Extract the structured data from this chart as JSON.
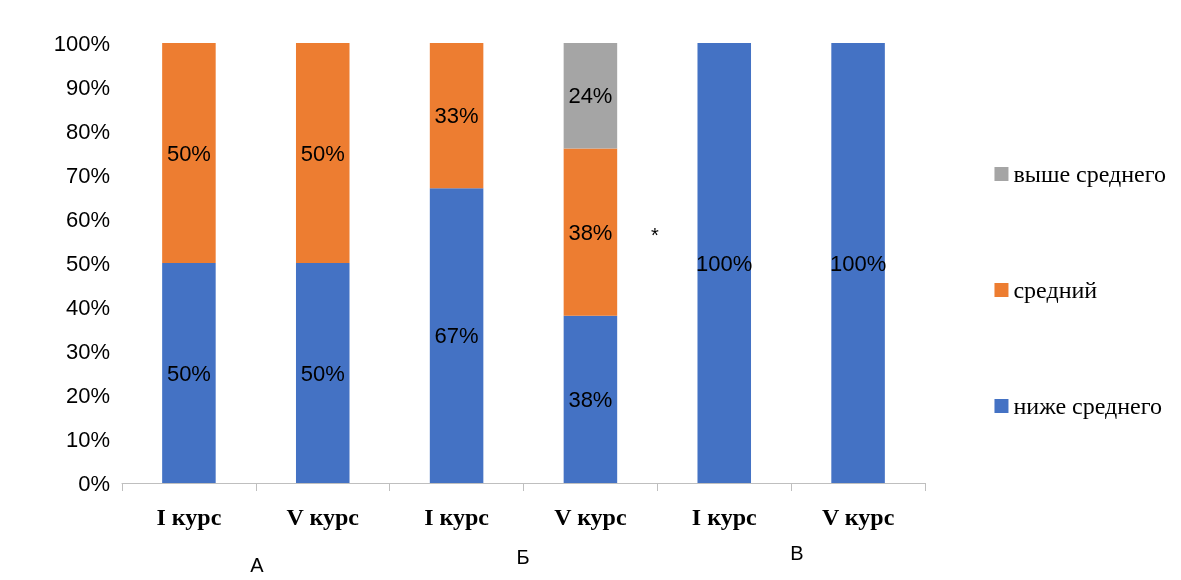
{
  "chart_data": {
    "type": "bar",
    "stacked": true,
    "categories": [
      "I курс",
      "V курс",
      "I курс",
      "V курс",
      "I курс",
      "V курс"
    ],
    "series": [
      {
        "name": "ниже среднего",
        "color": "#4472c4",
        "values": [
          50,
          50,
          67,
          38,
          100,
          100
        ],
        "value_labels": [
          "50%",
          "50%",
          "67%",
          "38%",
          "100%",
          "100%"
        ]
      },
      {
        "name": "средний",
        "color": "#ed7d31",
        "values": [
          50,
          50,
          33,
          38,
          null,
          null
        ],
        "value_labels": [
          "50%",
          "50%",
          "33%",
          "38%",
          null,
          null
        ]
      },
      {
        "name": "выше среднего",
        "color": "#a5a5a5",
        "values": [
          null,
          null,
          null,
          24,
          null,
          null
        ],
        "value_labels": [
          null,
          null,
          null,
          "24%",
          null,
          null
        ]
      }
    ],
    "ylim": [
      0,
      100
    ],
    "yticks": [
      {
        "value": 0,
        "label": "0%"
      },
      {
        "value": 10,
        "label": "10%"
      },
      {
        "value": 20,
        "label": "20%"
      },
      {
        "value": 30,
        "label": "30%"
      },
      {
        "value": 40,
        "label": "40%"
      },
      {
        "value": 50,
        "label": "50%"
      },
      {
        "value": 60,
        "label": "60%"
      },
      {
        "value": 70,
        "label": "70%"
      },
      {
        "value": 80,
        "label": "80%"
      },
      {
        "value": 90,
        "label": "90%"
      },
      {
        "value": 100,
        "label": "100%"
      }
    ],
    "grid": false,
    "legend": "right",
    "annotations": [
      "А",
      "Б",
      "В",
      "*"
    ]
  }
}
